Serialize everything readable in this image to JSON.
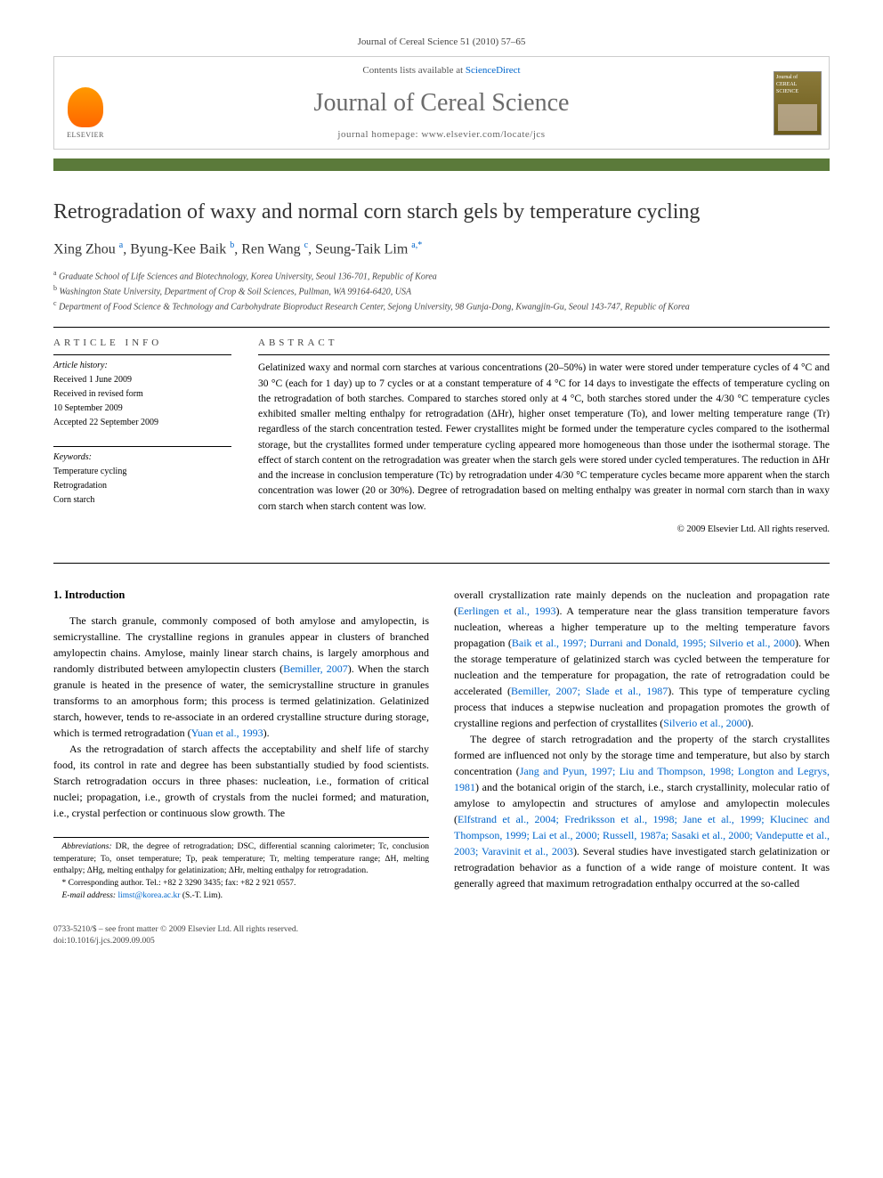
{
  "citation": "Journal of Cereal Science 51 (2010) 57–65",
  "header": {
    "contents_prefix": "Contents lists available at ",
    "contents_link": "ScienceDirect",
    "journal": "Journal of Cereal Science",
    "homepage_label": "journal homepage: ",
    "homepage_url": "www.elsevier.com/locate/jcs",
    "publisher": "ELSEVIER",
    "cover_label": "Journal of CEREAL SCIENCE"
  },
  "title": "Retrogradation of waxy and normal corn starch gels by temperature cycling",
  "authors_html": "Xing Zhou <sup>a</sup>, Byung-Kee Baik <sup>b</sup>, Ren Wang <sup>c</sup>, Seung-Taik Lim <sup>a,*</sup>",
  "affiliations": [
    "a Graduate School of Life Sciences and Biotechnology, Korea University, Seoul 136-701, Republic of Korea",
    "b Washington State University, Department of Crop & Soil Sciences, Pullman, WA 99164-6420, USA",
    "c Department of Food Science & Technology and Carbohydrate Bioproduct Research Center, Sejong University, 98 Gunja-Dong, Kwangjin-Gu, Seoul 143-747, Republic of Korea"
  ],
  "article_info": {
    "heading": "ARTICLE INFO",
    "history_label": "Article history:",
    "history": [
      "Received 1 June 2009",
      "Received in revised form",
      "10 September 2009",
      "Accepted 22 September 2009"
    ],
    "keywords_label": "Keywords:",
    "keywords": [
      "Temperature cycling",
      "Retrogradation",
      "Corn starch"
    ]
  },
  "abstract": {
    "heading": "ABSTRACT",
    "text": "Gelatinized waxy and normal corn starches at various concentrations (20–50%) in water were stored under temperature cycles of 4 °C and 30 °C (each for 1 day) up to 7 cycles or at a constant temperature of 4 °C for 14 days to investigate the effects of temperature cycling on the retrogradation of both starches. Compared to starches stored only at 4 °C, both starches stored under the 4/30 °C temperature cycles exhibited smaller melting enthalpy for retrogradation (ΔHr), higher onset temperature (To), and lower melting temperature range (Tr) regardless of the starch concentration tested. Fewer crystallites might be formed under the temperature cycles compared to the isothermal storage, but the crystallites formed under temperature cycling appeared more homogeneous than those under the isothermal storage. The effect of starch content on the retrogradation was greater when the starch gels were stored under cycled temperatures. The reduction in ΔHr and the increase in conclusion temperature (Tc) by retrogradation under 4/30 °C temperature cycles became more apparent when the starch concentration was lower (20 or 30%). Degree of retrogradation based on melting enthalpy was greater in normal corn starch than in waxy corn starch when starch content was low.",
    "copyright": "© 2009 Elsevier Ltd. All rights reserved."
  },
  "body": {
    "section_heading": "1. Introduction",
    "p1": "The starch granule, commonly composed of both amylose and amylopectin, is semicrystalline. The crystalline regions in granules appear in clusters of branched amylopectin chains. Amylose, mainly linear starch chains, is largely amorphous and randomly distributed between amylopectin clusters (",
    "p1_ref1": "Bemiller, 2007",
    "p1b": "). When the starch granule is heated in the presence of water, the semicrystalline structure in granules transforms to an amorphous form; this process is termed gelatinization. Gelatinized starch, however, tends to re-associate in an ordered crystalline structure during storage, which is termed retrogradation (",
    "p1_ref2": "Yuan et al., 1993",
    "p1c": ").",
    "p2": "As the retrogradation of starch affects the acceptability and shelf life of starchy food, its control in rate and degree has been substantially studied by food scientists. Starch retrogradation occurs in three phases: nucleation, i.e., formation of critical nuclei; propagation, i.e., growth of crystals from the nuclei formed; and maturation, i.e., crystal perfection or continuous slow growth. The",
    "p3a": "overall crystallization rate mainly depends on the nucleation and propagation rate (",
    "p3_ref1": "Eerlingen et al., 1993",
    "p3b": "). A temperature near the glass transition temperature favors nucleation, whereas a higher temperature up to the melting temperature favors propagation (",
    "p3_ref2": "Baik et al., 1997; Durrani and Donald, 1995; Silverio et al., 2000",
    "p3c": "). When the storage temperature of gelatinized starch was cycled between the temperature for nucleation and the temperature for propagation, the rate of retrogradation could be accelerated (",
    "p3_ref3": "Bemiller, 2007; Slade et al., 1987",
    "p3d": "). This type of temperature cycling process that induces a stepwise nucleation and propagation promotes the growth of crystalline regions and perfection of crystallites (",
    "p3_ref4": "Silverio et al., 2000",
    "p3e": ").",
    "p4a": "The degree of starch retrogradation and the property of the starch crystallites formed are influenced not only by the storage time and temperature, but also by starch concentration (",
    "p4_ref1": "Jang and Pyun, 1997; Liu and Thompson, 1998; Longton and Legrys, 1981",
    "p4b": ") and the botanical origin of the starch, i.e., starch crystallinity, molecular ratio of amylose to amylopectin and structures of amylose and amylopectin molecules (",
    "p4_ref2": "Elfstrand et al., 2004; Fredriksson et al., 1998; Jane et al., 1999; Klucinec and Thompson, 1999; Lai et al., 2000; Russell, 1987a; Sasaki et al., 2000; Vandeputte et al., 2003; Varavinit et al., 2003",
    "p4c": "). Several studies have investigated starch gelatinization or retrogradation behavior as a function of a wide range of moisture content. It was generally agreed that maximum retrogradation enthalpy occurred at the so-called"
  },
  "footnotes": {
    "abbrev_label": "Abbreviations:",
    "abbrev_text": " DR, the degree of retrogradation; DSC, differential scanning calorimeter; Tc, conclusion temperature; To, onset temperature; Tp, peak temperature; Tr, melting temperature range; ΔH, melting enthalpy; ΔHg, melting enthalpy for gelatinization; ΔHr, melting enthalpy for retrogradation.",
    "corr_label": "* Corresponding author. ",
    "corr_text": "Tel.: +82 2 3290 3435; fax: +82 2 921 0557.",
    "email_label": "E-mail address: ",
    "email": "limst@korea.ac.kr",
    "email_suffix": " (S.-T. Lim)."
  },
  "bottom": {
    "issn": "0733-5210/$ – see front matter © 2009 Elsevier Ltd. All rights reserved.",
    "doi": "doi:10.1016/j.jcs.2009.09.005"
  },
  "colors": {
    "bar": "#5b7a3a",
    "link": "#0066cc",
    "journal_grey": "#6b6b6b"
  }
}
